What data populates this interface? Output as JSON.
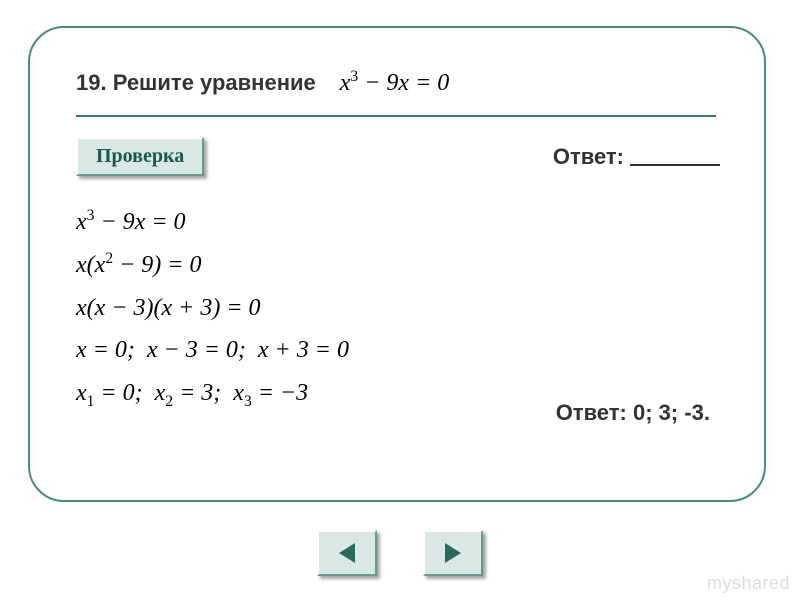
{
  "colors": {
    "card_border": "#4a8a7a",
    "hr": "#3a7a6a",
    "text": "#333333",
    "button_fill": "#d9e8e4",
    "button_border_light": "#ffffff",
    "button_border_dark": "#6a9a8e",
    "button_text": "#1a5a4a",
    "arrow": "#2a6a5a",
    "blank_line": "#333333",
    "watermark": "#dddddd"
  },
  "problem": {
    "label": "19. Решите уравнение",
    "equation_html": "<i>x</i><sup>3</sup> − 9<i>x</i> = 0"
  },
  "check_button": "Проверка",
  "answer_blank_label": "Ответ:",
  "work_lines_html": [
    "<i>x</i><sup>3</sup> − 9<i>x</i> = 0",
    "<i>x</i>(<i>x</i><sup>2</sup> − 9) = 0",
    "<i>x</i>(<i>x</i> − 3)(<i>x</i> + 3) = 0",
    "<i>x</i> = 0;&nbsp; <i>x</i> − 3 = 0;&nbsp; <i>x</i> + 3 = 0",
    "<i>x</i><sub>1</sub> = 0;&nbsp; <i>x</i><sub>2</sub> = 3;&nbsp; <i>x</i><sub>3</sub> = −3"
  ],
  "answer_final": "Ответ: 0; 3; -3.",
  "nav": {
    "prev": "prev",
    "next": "next"
  },
  "watermark": "myshared"
}
